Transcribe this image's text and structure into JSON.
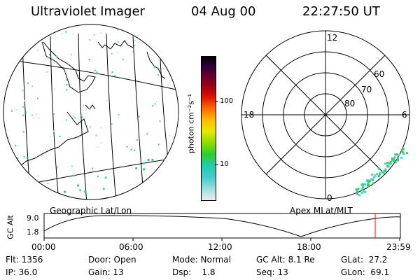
{
  "header": {
    "title": "Ultraviolet Imager",
    "date": "04 Aug 00",
    "time": "22:27:50 UT"
  },
  "colorbar": {
    "unit_label": "photon cm⁻²s⁻¹",
    "ticks": [
      "100",
      "10"
    ]
  },
  "left_panel": {
    "caption": "Geographic Lat/Lon"
  },
  "polar_plot": {
    "caption": "Apex MLat/MLT",
    "mlt_labels": {
      "top": "12",
      "left": "18",
      "right": "6",
      "bottom": "0"
    },
    "lat_labels": [
      "60",
      "70",
      "80"
    ]
  },
  "altitude": {
    "ylabel": "GC Alt",
    "y_ticks": [
      "9.0",
      "1.8"
    ],
    "x_ticks": [
      "00:00",
      "06:00",
      "12:00",
      "18:00",
      "23:59"
    ],
    "marker_color": "#ff0000"
  },
  "info": {
    "row1": {
      "flt": "Flt: 1356",
      "door": "Door: Open",
      "mode": "Mode: Normal",
      "gcalt": "GC Alt: 8.1 Re",
      "glat": "GLat:  27.2"
    },
    "row2": {
      "ip": "IP: 36.0",
      "gain": "Gain: 13",
      "dsp": "Dsp:    1.8",
      "seq": "Seq: 13",
      "glon": "GLon:  69.1"
    }
  }
}
